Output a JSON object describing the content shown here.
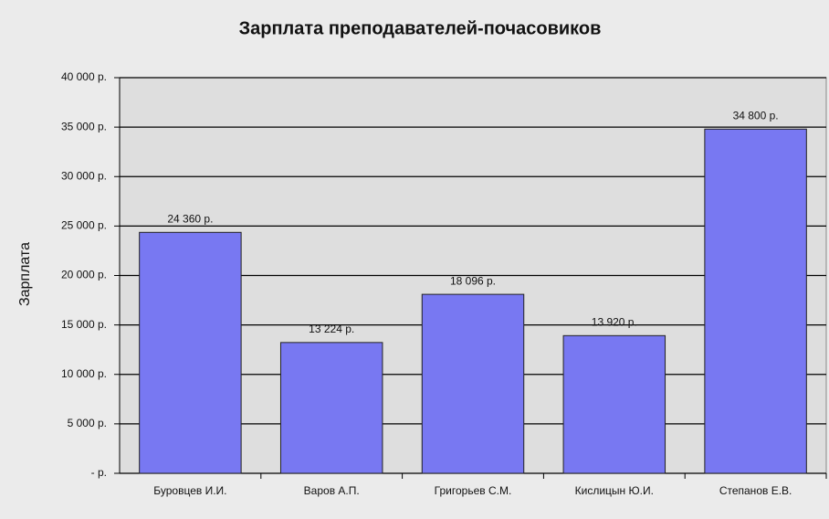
{
  "chart_data": {
    "type": "bar",
    "title": "Зарплата преподавателей-почасовиков",
    "y_label": "Зарплата",
    "categories": [
      "Буровцев И.И.",
      "Варов А.П.",
      "Григорьев С.М.",
      "Кислицын Ю.И.",
      "Степанов Е.В."
    ],
    "values": [
      24360,
      13224,
      18096,
      13920,
      34800
    ],
    "value_labels": [
      "24 360 р.",
      "13 224 р.",
      "18 096 р.",
      "13 920 р.",
      "34 800 р."
    ],
    "color": "#7878f2",
    "ylim": [
      0,
      40000
    ],
    "yticks": [
      {
        "value": 0,
        "label": "- р."
      },
      {
        "value": 5000,
        "label": "5 000 р."
      },
      {
        "value": 10000,
        "label": "10 000 р."
      },
      {
        "value": 15000,
        "label": "15 000 р."
      },
      {
        "value": 20000,
        "label": "20 000 р."
      },
      {
        "value": 25000,
        "label": "25 000 р."
      },
      {
        "value": 30000,
        "label": "30 000 р."
      },
      {
        "value": 35000,
        "label": "35 000 р."
      },
      {
        "value": 40000,
        "label": "40 000 р."
      }
    ],
    "grid": true
  }
}
